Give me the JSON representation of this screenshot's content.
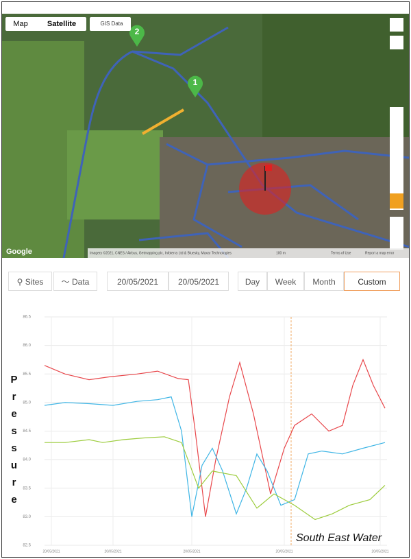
{
  "map": {
    "tabs": [
      "Map",
      "Satellite"
    ],
    "active_tab": 1,
    "gis_button": "GIS Data",
    "markers": [
      "2",
      "1"
    ],
    "logo": "Google",
    "attribution": "Imagery ©2021, CNES / Airbus, Getmapping plc, Infoterra Ltd & Bluesky, Maxar Technologies",
    "scale": "100 m",
    "terms": "Terms of Use",
    "report": "Report a map error"
  },
  "toolbar": {
    "sites": "Sites",
    "data": "Data",
    "date_from": "20/05/2021",
    "date_to": "20/05/2021",
    "ranges": [
      "Day",
      "Week",
      "Month",
      "Custom"
    ],
    "active_range": 3
  },
  "chart_data": {
    "type": "line",
    "y_label": "Pressure",
    "annotation": "South East Water",
    "vline": {
      "value": 72,
      "color": "#f0a860"
    },
    "xlim": [
      0,
      100
    ],
    "xticks": [
      {
        "value": 2,
        "label": "20/05/2021"
      },
      {
        "value": 20,
        "label": "20/05/2021"
      },
      {
        "value": 43,
        "label": "20/05/2021"
      },
      {
        "value": 70,
        "label": "20/05/2021"
      },
      {
        "value": 98,
        "label": "20/05/2021"
      }
    ],
    "ylim": [
      82.5,
      86.5
    ],
    "yticks": [
      {
        "value": 82.5,
        "label": "82.5"
      },
      {
        "value": 83,
        "label": "83.0"
      },
      {
        "value": 83.5,
        "label": "83.5"
      },
      {
        "value": 84,
        "label": "84.0"
      },
      {
        "value": 84.5,
        "label": "84.5"
      },
      {
        "value": 85,
        "label": "85.0"
      },
      {
        "value": 85.5,
        "label": "85.5"
      },
      {
        "value": 86,
        "label": "86.0"
      },
      {
        "value": 86.5,
        "label": "86.5"
      }
    ],
    "grid": true,
    "series": [
      {
        "name": "Red",
        "color": "#e8474b",
        "x": [
          0,
          6,
          13,
          19,
          27,
          33,
          39,
          42,
          44,
          47,
          50,
          54,
          57,
          61,
          66,
          70,
          73,
          78,
          83,
          87,
          90,
          93,
          96,
          99.4
        ],
        "values": [
          85.65,
          85.5,
          85.4,
          85.45,
          85.5,
          85.55,
          85.42,
          85.4,
          84.5,
          83.0,
          84.0,
          85.1,
          85.7,
          84.8,
          83.4,
          84.2,
          84.6,
          84.8,
          84.5,
          84.6,
          85.3,
          85.75,
          85.3,
          84.9
        ]
      },
      {
        "name": "Blue",
        "color": "#3eb5e5",
        "x": [
          0,
          6,
          13,
          20,
          27,
          33,
          37,
          40,
          43,
          46,
          49,
          52,
          56,
          59,
          62,
          65,
          69,
          73,
          77,
          81,
          87,
          93,
          99.4
        ],
        "values": [
          84.95,
          85.0,
          84.98,
          84.95,
          85.02,
          85.05,
          85.1,
          84.5,
          83.0,
          83.9,
          84.2,
          83.8,
          83.05,
          83.5,
          84.1,
          83.8,
          83.2,
          83.3,
          84.1,
          84.15,
          84.1,
          84.2,
          84.3
        ]
      },
      {
        "name": "Green",
        "color": "#9ccc3c",
        "x": [
          0,
          6,
          13,
          17,
          23,
          29,
          35,
          40,
          45,
          49,
          56,
          62,
          67,
          73,
          79,
          84,
          89,
          95,
          99.4
        ],
        "values": [
          84.3,
          84.3,
          84.35,
          84.3,
          84.35,
          84.38,
          84.4,
          84.3,
          83.5,
          83.8,
          83.72,
          83.15,
          83.4,
          83.2,
          82.95,
          83.05,
          83.2,
          83.3,
          83.55
        ]
      }
    ]
  }
}
